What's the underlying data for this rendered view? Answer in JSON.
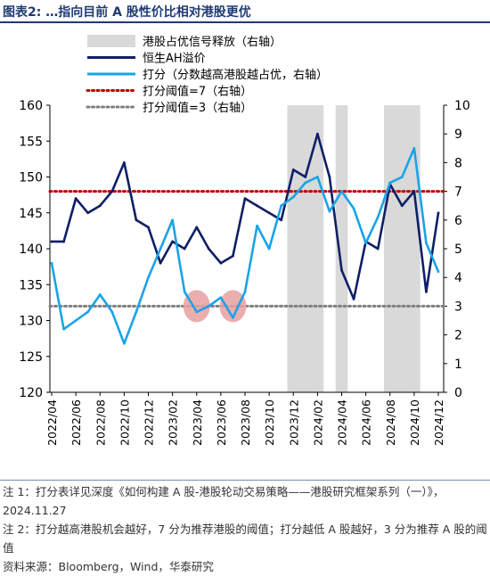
{
  "figure": {
    "label": "图表2:",
    "title": "…指向目前 A 股性价比相对港股更优"
  },
  "chart_data": {
    "type": "line",
    "legend_placement": "top-center",
    "x_tick_labels": [
      "2022/04",
      "2022/06",
      "2022/08",
      "2022/10",
      "2022/12",
      "2023/02",
      "2023/04",
      "2023/06",
      "2023/08",
      "2023/10",
      "2023/12",
      "2024/02",
      "2024/04",
      "2024/06",
      "2024/08",
      "2024/10",
      "2024/12"
    ],
    "x_range": [
      "2022/04",
      "2024/12"
    ],
    "ylim_left": [
      120,
      160
    ],
    "yticks_left": [
      120,
      125,
      130,
      135,
      140,
      145,
      150,
      155,
      160
    ],
    "ylim_right": [
      0,
      10
    ],
    "yticks_right": [
      0,
      1,
      2,
      3,
      4,
      5,
      6,
      7,
      8,
      9,
      10
    ],
    "shaded_periods": {
      "name": "港股占优信号释放（右轴）",
      "color": "#d9d9d9",
      "ranges": [
        [
          "2023/12",
          "2024/02"
        ],
        [
          "2024/04",
          "2024/04"
        ],
        [
          "2024/08",
          "2024/10"
        ]
      ]
    },
    "series": [
      {
        "name": "恒生AH溢价",
        "axis": "left",
        "color": "#0f1f66",
        "points": [
          [
            "2022/04",
            141
          ],
          [
            "2022/05",
            141
          ],
          [
            "2022/06",
            147
          ],
          [
            "2022/07",
            145
          ],
          [
            "2022/08",
            146
          ],
          [
            "2022/09",
            148
          ],
          [
            "2022/10",
            152
          ],
          [
            "2022/11",
            144
          ],
          [
            "2022/12",
            143
          ],
          [
            "2023/01",
            138
          ],
          [
            "2023/02",
            141
          ],
          [
            "2023/03",
            140
          ],
          [
            "2023/04",
            143
          ],
          [
            "2023/05",
            140
          ],
          [
            "2023/06",
            138
          ],
          [
            "2023/07",
            139
          ],
          [
            "2023/08",
            147
          ],
          [
            "2023/09",
            146
          ],
          [
            "2023/10",
            145
          ],
          [
            "2023/11",
            144
          ],
          [
            "2023/12",
            151
          ],
          [
            "2024/01",
            150
          ],
          [
            "2024/02",
            156
          ],
          [
            "2024/03",
            150
          ],
          [
            "2024/04",
            137
          ],
          [
            "2024/05",
            133
          ],
          [
            "2024/06",
            141
          ],
          [
            "2024/07",
            140
          ],
          [
            "2024/08",
            149
          ],
          [
            "2024/09",
            146
          ],
          [
            "2024/10",
            148
          ],
          [
            "2024/11",
            134
          ],
          [
            "2024/12",
            145
          ]
        ]
      },
      {
        "name": "打分（分数越高港股越占优，右轴）",
        "axis": "right",
        "color": "#1aa3e8",
        "points": [
          [
            "2022/04",
            4.5
          ],
          [
            "2022/05",
            2.2
          ],
          [
            "2022/06",
            2.5
          ],
          [
            "2022/07",
            2.8
          ],
          [
            "2022/08",
            3.4
          ],
          [
            "2022/09",
            2.8
          ],
          [
            "2022/10",
            1.7
          ],
          [
            "2022/11",
            2.8
          ],
          [
            "2022/12",
            4.0
          ],
          [
            "2023/01",
            5.0
          ],
          [
            "2023/02",
            6.0
          ],
          [
            "2023/03",
            3.5
          ],
          [
            "2023/04",
            2.8
          ],
          [
            "2023/05",
            3.0
          ],
          [
            "2023/06",
            3.3
          ],
          [
            "2023/07",
            2.6
          ],
          [
            "2023/08",
            3.5
          ],
          [
            "2023/09",
            5.8
          ],
          [
            "2023/10",
            5.0
          ],
          [
            "2023/11",
            6.5
          ],
          [
            "2023/12",
            6.8
          ],
          [
            "2024/01",
            7.3
          ],
          [
            "2024/02",
            7.5
          ],
          [
            "2024/03",
            6.3
          ],
          [
            "2024/04",
            7.0
          ],
          [
            "2024/05",
            6.4
          ],
          [
            "2024/06",
            5.2
          ],
          [
            "2024/07",
            6.1
          ],
          [
            "2024/08",
            7.3
          ],
          [
            "2024/09",
            7.5
          ],
          [
            "2024/10",
            8.5
          ],
          [
            "2024/11",
            5.2
          ],
          [
            "2024/12",
            4.2
          ]
        ]
      },
      {
        "name": "打分阈值=7（右轴）",
        "axis": "right",
        "color": "#c00000",
        "style": "dotted",
        "constant": 7
      },
      {
        "name": "打分阈值=3（右轴）",
        "axis": "right",
        "color": "#7f7f7f",
        "style": "dotted",
        "constant": 3
      }
    ],
    "annotations": [
      {
        "type": "circle",
        "x": "2023/04",
        "y_right": 3.0,
        "color": "#e8a0a0"
      },
      {
        "type": "circle",
        "x": "2023/07",
        "y_right": 3.0,
        "color": "#e8a0a0"
      }
    ]
  },
  "notes": [
    "注 1：打分表详见深度《如何构建 A 股-港股轮动交易策略——港股研究框架系列（一）》，2024.11.27",
    "注 2：打分越高港股机会越好，7 分为推荐港股的阈值；打分越低 A 股越好，3 分为推荐 A 股的阈值",
    "资料来源：Bloomberg，Wind，华泰研究"
  ]
}
